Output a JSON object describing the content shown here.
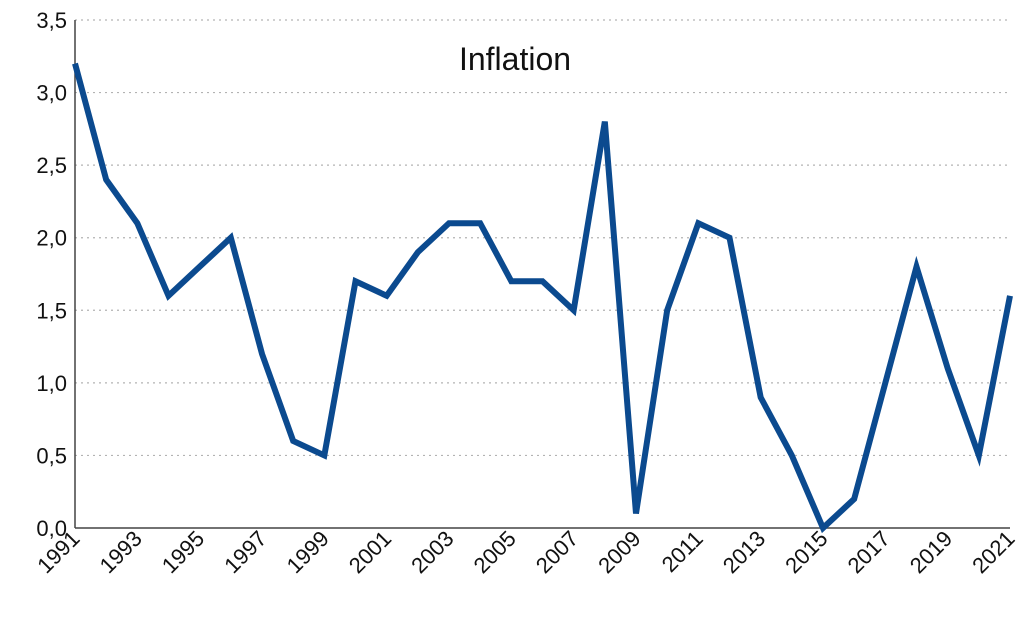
{
  "chart_data": {
    "type": "line",
    "title": "Inflation",
    "xlabel": "",
    "ylabel": "",
    "x": [
      1991,
      1992,
      1993,
      1994,
      1995,
      1996,
      1997,
      1998,
      1999,
      2000,
      2001,
      2002,
      2003,
      2004,
      2005,
      2006,
      2007,
      2008,
      2009,
      2010,
      2011,
      2012,
      2013,
      2014,
      2015,
      2016,
      2017,
      2018,
      2019,
      2020,
      2021
    ],
    "x_tick_labels": [
      "1991",
      "1993",
      "1995",
      "1997",
      "1999",
      "2001",
      "2003",
      "2005",
      "2007",
      "2009",
      "2011",
      "2013",
      "2015",
      "2017",
      "2019",
      "2021"
    ],
    "y_tick_labels": [
      "0,0",
      "0,5",
      "1,0",
      "1,5",
      "2,0",
      "2,5",
      "3,0",
      "3,5"
    ],
    "y_ticks": [
      0,
      0.5,
      1.0,
      1.5,
      2.0,
      2.5,
      3.0,
      3.5
    ],
    "ylim": [
      0,
      3.5
    ],
    "xlim": [
      1991,
      2021
    ],
    "grid": "horizontal dotted",
    "series": [
      {
        "color": "#0b4a8f",
        "values": [
          3.2,
          2.4,
          2.1,
          1.6,
          1.8,
          2.0,
          1.2,
          0.6,
          0.5,
          1.7,
          1.6,
          1.9,
          2.1,
          2.1,
          1.7,
          1.7,
          1.5,
          2.8,
          0.1,
          1.5,
          2.1,
          2.0,
          0.9,
          0.5,
          0.0,
          0.2,
          1.0,
          1.8,
          1.1,
          0.5,
          1.6
        ]
      }
    ]
  }
}
